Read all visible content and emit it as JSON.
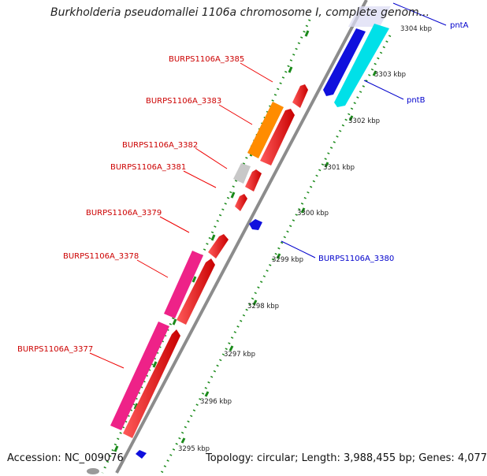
{
  "header": {
    "title": "Burkholderia pseudomallei 1106a chromosome I, complete genom..."
  },
  "footer": {
    "accession": "Accession: NC_009076",
    "summary": "Topology: circular; Length: 3,988,455 bp; Genes: 4,077"
  },
  "map": {
    "ticks": [
      "3304 kbp",
      "3303 kbp",
      "3302 kbp",
      "3301 kbp",
      "3300 kbp",
      "3299 kbp",
      "3298 kbp",
      "3297 kbp",
      "3296 kbp",
      "3295 kbp"
    ],
    "left_labels": [
      "BURPS1106A_3385",
      "BURPS1106A_3383",
      "BURPS1106A_3382",
      "BURPS1106A_3381",
      "BURPS1106A_3379",
      "BURPS1106A_3378",
      "BURPS1106A_3377"
    ],
    "right_labels": [
      "pntA",
      "pntB",
      "BURPS1106A_3380"
    ],
    "colors": {
      "backbone": "#8a8a8a",
      "gene_red": "#ee0000",
      "gene_magenta": "#ee2288",
      "gene_orange": "#ff8c00",
      "gene_gray": "#c8c8c8",
      "gene_blue": "#1010dd",
      "gene_cyan": "#00e0e8",
      "tick_dots": "#1a8a1a"
    }
  }
}
